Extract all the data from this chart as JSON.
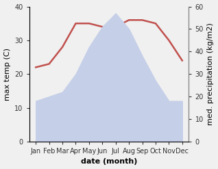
{
  "months": [
    "Jan",
    "Feb",
    "Mar",
    "Apr",
    "May",
    "Jun",
    "Jul",
    "Aug",
    "Sep",
    "Oct",
    "Nov",
    "Dec"
  ],
  "temperature": [
    22,
    23,
    28,
    35,
    35,
    34,
    34,
    36,
    36,
    35,
    30,
    24
  ],
  "precipitation": [
    18,
    20,
    22,
    30,
    42,
    51,
    57,
    50,
    38,
    27,
    18,
    18
  ],
  "temp_color": "#c0504d",
  "precip_fill_color": "#c5cfe8",
  "temp_ylim": [
    0,
    40
  ],
  "precip_ylim": [
    0,
    60
  ],
  "temp_yticks": [
    0,
    10,
    20,
    30,
    40
  ],
  "precip_yticks": [
    0,
    10,
    20,
    30,
    40,
    50,
    60
  ],
  "xlabel": "date (month)",
  "ylabel_left": "max temp (C)",
  "ylabel_right": "med. precipitation (kg/m2)",
  "label_fontsize": 8,
  "tick_fontsize": 7,
  "bg_color": "#f0f0f0"
}
